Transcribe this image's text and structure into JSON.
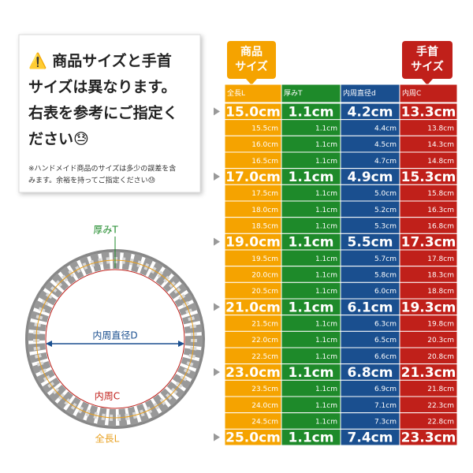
{
  "notice": {
    "lines": [
      "⚠️ 商品サイズと手首",
      "サイズは異なります。",
      "右表を参考にご指定く",
      "ださい😓"
    ],
    "note_lines": [
      "※ハンドメイド商品のサイズは多少の誤差を含",
      "みます。余裕を持ってご指定ください😓"
    ]
  },
  "diagram": {
    "thickness": "厚みT",
    "inner_diameter": "内周直径D",
    "inner_circumference": "内周C",
    "length": "全長L"
  },
  "badges": {
    "product": [
      "商品",
      "サイズ"
    ],
    "wrist": [
      "手首",
      "サイズ"
    ]
  },
  "table": {
    "header": [
      "全長L",
      "厚みT",
      "内周直径d",
      "内周C"
    ],
    "rows": [
      [
        "15.0cm",
        "1.1cm",
        "4.2cm",
        "13.3cm"
      ],
      [
        "15.5cm",
        "1.1cm",
        "4.4cm",
        "13.8cm"
      ],
      [
        "16.0cm",
        "1.1cm",
        "4.5cm",
        "14.3cm"
      ],
      [
        "16.5cm",
        "1.1cm",
        "4.7cm",
        "14.8cm"
      ],
      [
        "17.0cm",
        "1.1cm",
        "4.9cm",
        "15.3cm"
      ],
      [
        "17.5cm",
        "1.1cm",
        "5.0cm",
        "15.8cm"
      ],
      [
        "18.0cm",
        "1.1cm",
        "5.2cm",
        "16.3cm"
      ],
      [
        "18.5cm",
        "1.1cm",
        "5.3cm",
        "16.8cm"
      ],
      [
        "19.0cm",
        "1.1cm",
        "5.5cm",
        "17.3cm"
      ],
      [
        "19.5cm",
        "1.1cm",
        "5.7cm",
        "17.8cm"
      ],
      [
        "20.0cm",
        "1.1cm",
        "5.8cm",
        "18.3cm"
      ],
      [
        "20.5cm",
        "1.1cm",
        "6.0cm",
        "18.8cm"
      ],
      [
        "21.0cm",
        "1.1cm",
        "6.1cm",
        "19.3cm"
      ],
      [
        "21.5cm",
        "1.1cm",
        "6.3cm",
        "19.8cm"
      ],
      [
        "22.0cm",
        "1.1cm",
        "6.5cm",
        "20.3cm"
      ],
      [
        "22.5cm",
        "1.1cm",
        "6.6cm",
        "20.8cm"
      ],
      [
        "23.0cm",
        "1.1cm",
        "6.8cm",
        "21.3cm"
      ],
      [
        "23.5cm",
        "1.1cm",
        "6.9cm",
        "21.8cm"
      ],
      [
        "24.0cm",
        "1.1cm",
        "7.1cm",
        "22.3cm"
      ],
      [
        "24.5cm",
        "1.1cm",
        "7.3cm",
        "22.8cm"
      ],
      [
        "25.0cm",
        "1.1cm",
        "7.4cm",
        "23.3cm"
      ]
    ]
  }
}
